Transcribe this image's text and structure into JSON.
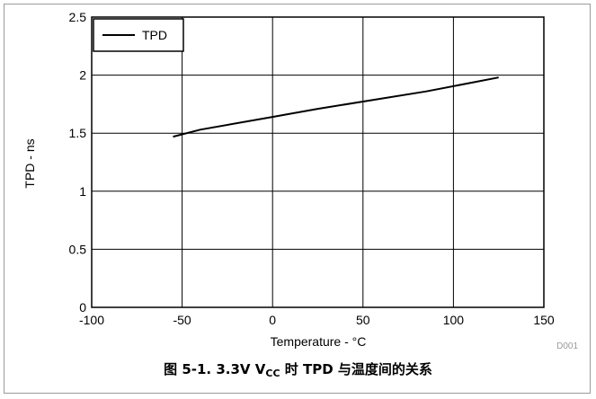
{
  "figure": {
    "caption_prefix": "图 5-1. 3.3V V",
    "caption_sub": "CC",
    "caption_suffix": " 时 TPD 与温度间的关系",
    "id_label": "D001"
  },
  "chart_data": {
    "type": "line",
    "xlabel": "Temperature - °C",
    "ylabel": "TPD - ns",
    "xlim": [
      -100,
      150
    ],
    "ylim": [
      0,
      2.5
    ],
    "xticks": [
      -100,
      -50,
      0,
      50,
      100,
      150
    ],
    "yticks": [
      0,
      0.5,
      1,
      1.5,
      2,
      2.5
    ],
    "xtick_labels": [
      "-100",
      "-50",
      "0",
      "50",
      "100",
      "150"
    ],
    "ytick_labels": [
      "0",
      "0.5",
      "1",
      "1.5",
      "2",
      "2.5"
    ],
    "grid": true,
    "legend": "top-left",
    "series": [
      {
        "name": "TPD",
        "color": "#000000",
        "x": [
          -55,
          -40,
          0,
          25,
          85,
          125
        ],
        "y": [
          1.47,
          1.53,
          1.64,
          1.71,
          1.86,
          1.98
        ]
      }
    ]
  }
}
